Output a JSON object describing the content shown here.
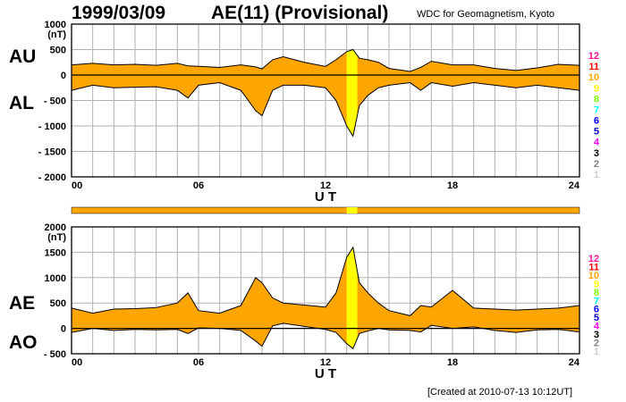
{
  "header": {
    "date": "1999/03/09",
    "title": "AE(11) (Provisional)",
    "source": "WDC for Geomagnetism, Kyoto"
  },
  "footer": "[Created at 2010-07-13 10:12UT]",
  "colors": {
    "fill": "#ffa500",
    "highlight": "#ffff00",
    "line": "#000000",
    "grid": "#b0b0b0",
    "station_numbers": [
      "#ff1493",
      "#ff0000",
      "#ffa500",
      "#ffff00",
      "#7fff00",
      "#00ffff",
      "#0000ff",
      "#0000cd",
      "#ff00ff",
      "#000000",
      "#808080",
      "#cccccc"
    ]
  },
  "station_numbers": [
    "12",
    "11",
    "10",
    "9",
    "8",
    "7",
    "6",
    "5",
    "4",
    "3",
    "2",
    "1"
  ],
  "chart_data": [
    {
      "type": "area",
      "upper_label": "AU",
      "lower_label": "AL",
      "ylabel": "(nT)",
      "xlabel": "U T",
      "ylim": [
        -2000,
        1000
      ],
      "y_ticks": [
        "1000",
        "500",
        "0",
        "- 500",
        "- 1000",
        "- 1500",
        "- 2000"
      ],
      "xlim": [
        0,
        24
      ],
      "x_ticks": [
        "00",
        "06",
        "12",
        "18",
        "24"
      ],
      "highlight_hours": [
        13.0,
        13.5
      ],
      "grid": true,
      "x_hours": [
        0,
        1,
        2,
        3,
        4,
        5,
        5.5,
        6,
        7,
        8,
        8.7,
        9,
        9.5,
        10,
        11,
        12,
        12.5,
        13,
        13.3,
        13.6,
        14,
        14.5,
        15,
        16,
        16.5,
        17,
        18,
        19,
        20,
        21,
        22,
        23,
        24
      ],
      "series": [
        {
          "name": "AU",
          "values": [
            200,
            230,
            200,
            210,
            190,
            230,
            180,
            170,
            150,
            200,
            160,
            120,
            300,
            360,
            250,
            170,
            300,
            460,
            500,
            330,
            300,
            250,
            130,
            70,
            150,
            270,
            200,
            200,
            130,
            90,
            140,
            210,
            190
          ]
        },
        {
          "name": "AL",
          "values": [
            -300,
            -200,
            -250,
            -240,
            -230,
            -300,
            -450,
            -200,
            -150,
            -300,
            -700,
            -800,
            -300,
            -200,
            -200,
            -250,
            -500,
            -1000,
            -1200,
            -600,
            -400,
            -250,
            -200,
            -150,
            -300,
            -150,
            -220,
            -150,
            -200,
            -250,
            -200,
            -250,
            -300
          ]
        }
      ]
    },
    {
      "type": "area",
      "upper_label": "AE",
      "lower_label": "AO",
      "ylabel": "(nT)",
      "xlabel": "U T",
      "ylim": [
        -500,
        2000
      ],
      "y_ticks": [
        "2000",
        "1500",
        "1000",
        "500",
        "0",
        "- 500"
      ],
      "xlim": [
        0,
        24
      ],
      "x_ticks": [
        "00",
        "06",
        "12",
        "18",
        "24"
      ],
      "highlight_hours": [
        13.0,
        13.5
      ],
      "grid": true,
      "x_hours": [
        0,
        1,
        2,
        3,
        4,
        5,
        5.5,
        6,
        7,
        8,
        8.7,
        9,
        9.5,
        10,
        11,
        12,
        12.5,
        13,
        13.3,
        13.6,
        14,
        14.5,
        15,
        16,
        16.5,
        17,
        18,
        19,
        20,
        21,
        22,
        23,
        24
      ],
      "series": [
        {
          "name": "AE",
          "values": [
            400,
            300,
            380,
            390,
            410,
            500,
            700,
            350,
            300,
            450,
            1000,
            900,
            600,
            500,
            460,
            420,
            700,
            1400,
            1600,
            900,
            700,
            500,
            350,
            250,
            450,
            420,
            750,
            400,
            380,
            360,
            380,
            400,
            450
          ]
        },
        {
          "name": "AO",
          "values": [
            -80,
            0,
            -40,
            -20,
            -30,
            -20,
            -100,
            10,
            0,
            -40,
            -250,
            -350,
            50,
            100,
            40,
            -20,
            -80,
            -300,
            -400,
            -100,
            -50,
            0,
            -30,
            -40,
            -70,
            60,
            0,
            30,
            -40,
            -80,
            -30,
            -20,
            -70
          ]
        }
      ]
    }
  ]
}
